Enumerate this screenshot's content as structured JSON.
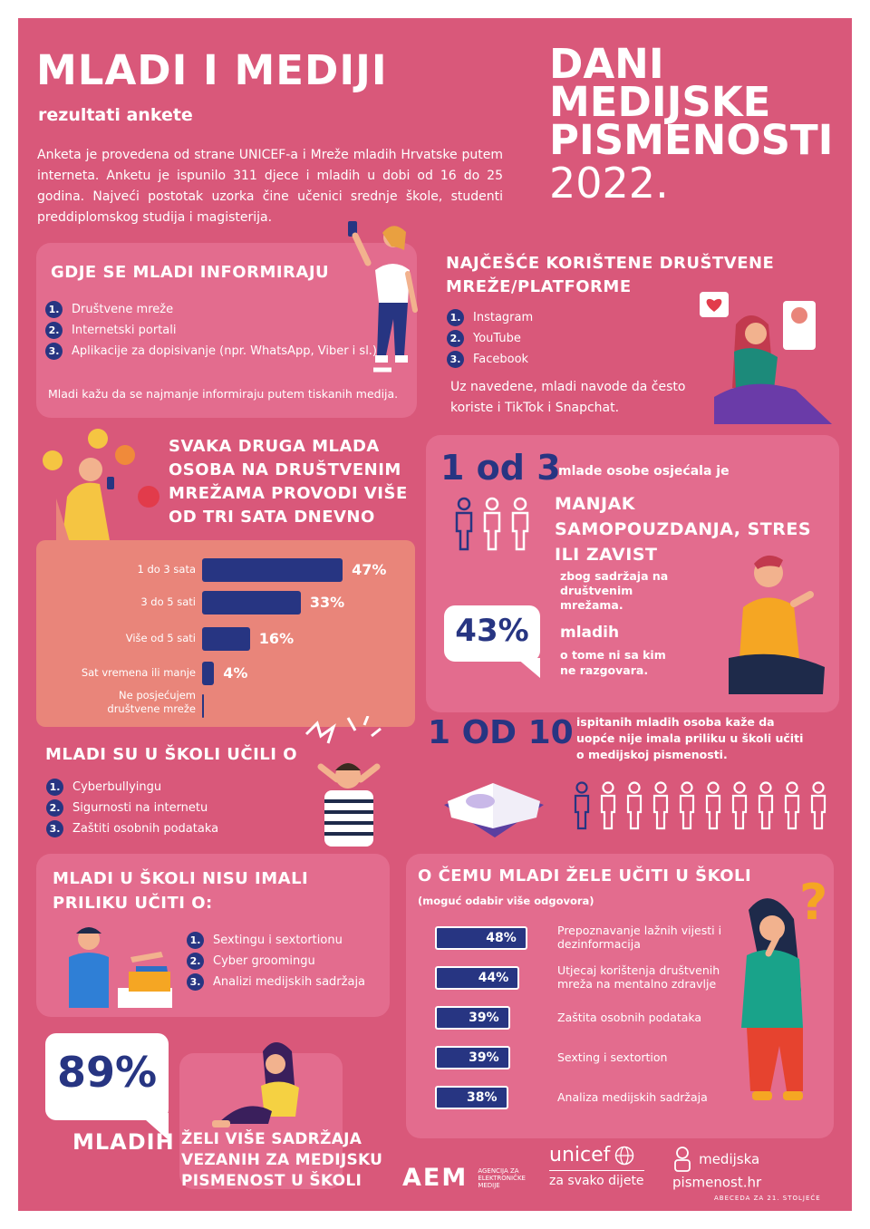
{
  "header": {
    "title": "MLADI I MEDIJI",
    "subtitle": "rezultati ankete",
    "intro": "Anketa je provedena od strane UNICEF-a i Mreže mladih Hrvatske putem interneta. Anketu je ispunilo 311 djece i mladih u dobi od 16 do 25 godina. Najveći postotak uzorka čine učenici srednje škole, studenti preddiplomskog studija i magisterija.",
    "event_line1": "DANI",
    "event_line2": "MEDIJSKE",
    "event_line3": "PISMENOSTI",
    "event_year": "2022."
  },
  "inform": {
    "title": "GDJE SE MLADI INFORMIRAJU",
    "items": [
      "Društvene mreže",
      "Internetski portali",
      "Aplikacije za dopisivanje (npr. WhatsApp, Viber i sl.)"
    ],
    "note": "Mladi kažu da se najmanje informiraju putem tiskanih medija."
  },
  "platforms": {
    "title": "NAJČEŠĆE KORIŠTENE DRUŠTVENE MREŽE/PLATFORME",
    "items": [
      "Instagram",
      "YouTube",
      "Facebook"
    ],
    "note": "Uz navedene, mladi navode da često koriste i TikTok i Snapchat."
  },
  "time": {
    "title": "SVAKA DRUGA MLADA OSOBA NA DRUŠTVENIM MREŽAMA PROVODI VIŠE OD TRI SATA DNEVNO"
  },
  "feelings": {
    "ratio": "1 od 3",
    "lead": "mlade osobe osjećala je",
    "highlight": "MANJAK SAMOPOUZDANJA, STRES ILI ZAVIST",
    "cause": "zbog sadržaja na društvenim mrežama.",
    "percent": "43%",
    "percent_label": "mladih",
    "percent_text": "o tome ni sa kim ne razgovara."
  },
  "school_learned": {
    "title": "MLADI SU U ŠKOLI UČILI O",
    "items": [
      "Cyberbullyingu",
      "Sigurnosti na internetu",
      "Zaštiti osobnih podataka"
    ]
  },
  "one_of_ten": {
    "ratio": "1 OD 10",
    "text": "ispitanih mladih osoba kaže da uopće nije imala priliku u školi učiti o medijskoj pismenosti."
  },
  "school_missing": {
    "title": "MLADI U ŠKOLI NISU IMALI PRILIKU UČITI O:",
    "items": [
      "Sextingu i sextortionu",
      "Cyber groomingu",
      "Analizi medijskih sadržaja"
    ]
  },
  "wants": {
    "title": "O ČEMU MLADI ŽELE UČITI U ŠKOLI",
    "subtitle": "(moguć odabir više odgovora)"
  },
  "more_content": {
    "percent": "89%",
    "label": "MLADIH",
    "text": "ŽELI VIŠE SADRŽAJA VEZANIH ZA MEDIJSKU PISMENOST U ŠKOLI"
  },
  "footer": {
    "aem_mark": "AEM",
    "aem_text": "AGENCIJA ZA ELEKTRONIČKE MEDIJE",
    "unicef": "unicef",
    "unicef_tag": "za svako dijete",
    "mp_name": "medijska pismenost.hr",
    "mp_tag": "ABECEDA ZA 21. STOLJEĆE"
  },
  "colors": {
    "background": "#d9587a",
    "card": "#e36c8e",
    "navy": "#273582",
    "salmon": "#e9857a"
  },
  "chart_data": [
    {
      "type": "bar",
      "orientation": "horizontal",
      "categories": [
        "1 do 3 sata",
        "3 do 5 sati",
        "Više od 5 sati",
        "Sat vremena ili manje",
        "Ne posjećujem društvene mreže"
      ],
      "values": [
        47,
        33,
        16,
        4,
        0
      ],
      "value_labels": [
        "47%",
        "33%",
        "16%",
        "4%",
        ""
      ]
    },
    {
      "type": "bar",
      "orientation": "horizontal",
      "categories": [
        "Prepoznavanje lažnih vijesti i dezinformacija",
        "Utjecaj korištenja društvenih mreža na mentalno zdravlje",
        "Zaštita osobnih podataka",
        "Sexting i sextortion",
        "Analiza medijskih sadržaja"
      ],
      "values": [
        48,
        44,
        39,
        39,
        38
      ],
      "value_labels": [
        "48%",
        "44%",
        "39%",
        "39%",
        "38%"
      ]
    }
  ]
}
